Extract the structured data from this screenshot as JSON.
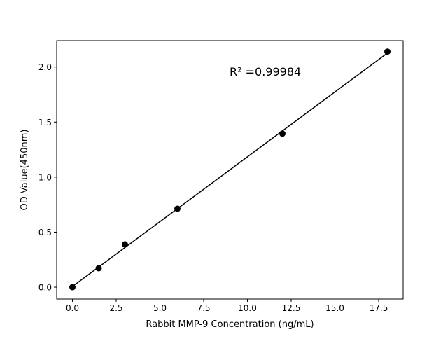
{
  "chart_data": {
    "type": "scatter",
    "title": "",
    "xlabel": "Rabbit MMP-9 Concentration (ng/mL)",
    "ylabel": "OD Value(450nm)",
    "xlim": [
      -0.9,
      18.9
    ],
    "ylim": [
      -0.108,
      2.24
    ],
    "xticks": [
      0.0,
      2.5,
      5.0,
      7.5,
      10.0,
      12.5,
      15.0,
      17.5
    ],
    "xtick_labels": [
      "0.0",
      "2.5",
      "5.0",
      "7.5",
      "10.0",
      "12.5",
      "15.0",
      "17.5"
    ],
    "yticks": [
      0.0,
      0.5,
      1.0,
      1.5,
      2.0
    ],
    "ytick_labels": [
      "0.0",
      "0.5",
      "1.0",
      "1.5",
      "2.0"
    ],
    "grid": false,
    "series": [
      {
        "x": [
          0,
          1.5,
          3,
          6,
          12,
          18
        ],
        "y": [
          0.0,
          0.172,
          0.389,
          0.713,
          1.395,
          2.14
        ],
        "marker": "circle",
        "color": "#000000",
        "fit": "linear"
      }
    ],
    "annotation": "R² =0.99984"
  }
}
